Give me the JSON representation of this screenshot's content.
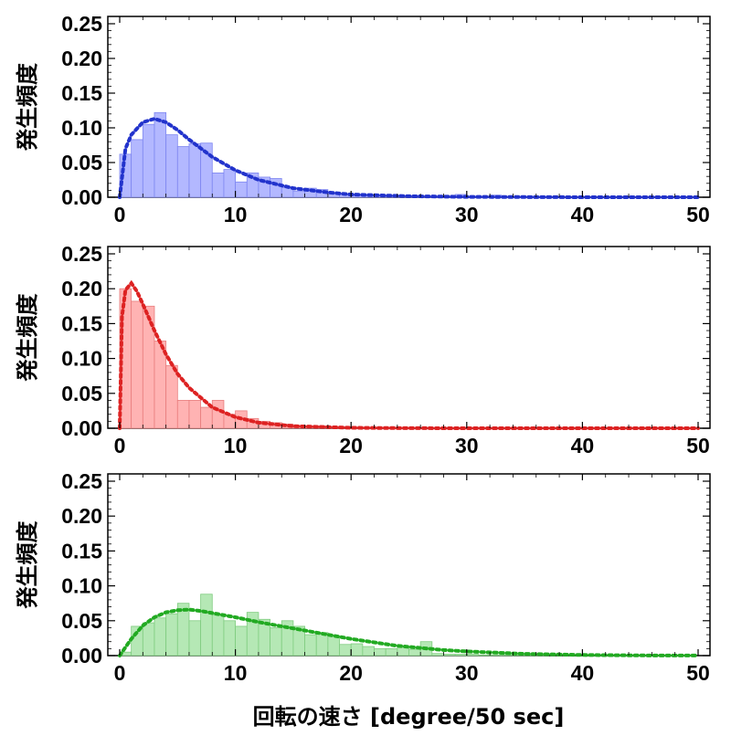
{
  "chart_data": [
    {
      "type": "bar",
      "ylabel": "発生頻度",
      "xlabel": "",
      "xlim": [
        0,
        50
      ],
      "ylim": [
        0,
        0.25
      ],
      "x_ticks": [
        "0",
        "10",
        "20",
        "30",
        "40",
        "50"
      ],
      "y_ticks": [
        "0.00",
        "0.05",
        "0.10",
        "0.15",
        "0.20",
        "0.25"
      ],
      "colors": {
        "bar_fill": "#b3b8ff",
        "bar_stroke": "#7e86f0",
        "fit": "#2233cc"
      },
      "bin_width": 1,
      "bin_starts": [
        0,
        1,
        2,
        3,
        4,
        5,
        6,
        7,
        8,
        9,
        10,
        11,
        12,
        13,
        14,
        15,
        16,
        17,
        18,
        19,
        20,
        21,
        22,
        23,
        24,
        25,
        26,
        27,
        28,
        29,
        30,
        31,
        32,
        33,
        34,
        35,
        36,
        37,
        38,
        39,
        40,
        41,
        42,
        43,
        44,
        45,
        46,
        47,
        48,
        49
      ],
      "values": [
        0.062,
        0.083,
        0.105,
        0.122,
        0.09,
        0.073,
        0.077,
        0.078,
        0.035,
        0.04,
        0.022,
        0.035,
        0.029,
        0.027,
        0.014,
        0.009,
        0.013,
        0.011,
        0.005,
        0.004,
        0.003,
        0.003,
        0.002,
        0.002,
        0.002,
        0.002,
        0.001,
        0.001,
        0.001,
        0.004,
        0.001,
        0.001,
        0.003,
        0.001,
        0.001,
        0.001,
        0.001,
        0,
        0,
        0,
        0,
        0,
        0,
        0,
        0,
        0,
        0,
        0,
        0,
        0
      ],
      "fit": {
        "style": "dotted",
        "x": [
          0,
          0.5,
          1,
          2,
          3,
          4,
          5,
          6,
          8,
          10,
          12,
          15,
          18,
          20,
          25,
          30,
          40,
          50
        ],
        "y": [
          0,
          0.07,
          0.09,
          0.108,
          0.113,
          0.108,
          0.097,
          0.083,
          0.058,
          0.039,
          0.025,
          0.013,
          0.007,
          0.004,
          0.0015,
          0.0005,
          0,
          0
        ]
      }
    },
    {
      "type": "bar",
      "ylabel": "発生頻度",
      "xlabel": "",
      "xlim": [
        0,
        50
      ],
      "ylim": [
        0,
        0.25
      ],
      "x_ticks": [
        "0",
        "10",
        "20",
        "30",
        "40",
        "50"
      ],
      "y_ticks": [
        "0.00",
        "0.05",
        "0.10",
        "0.15",
        "0.20",
        "0.25"
      ],
      "colors": {
        "bar_fill": "#ffb3b3",
        "bar_stroke": "#e87d7d",
        "fit": "#dd2222"
      },
      "bin_width": 1,
      "bin_starts": [
        0,
        1,
        2,
        3,
        4,
        5,
        6,
        7,
        8,
        9,
        10,
        11,
        12,
        13,
        14,
        15,
        16,
        17,
        18,
        19,
        20,
        21,
        22,
        23,
        24,
        25,
        26,
        27,
        28,
        29,
        30,
        31,
        32,
        33,
        34,
        35,
        36,
        37,
        38,
        39,
        40,
        41,
        42,
        43,
        44,
        45,
        46,
        47,
        48,
        49
      ],
      "values": [
        0.2,
        0.182,
        0.175,
        0.125,
        0.09,
        0.04,
        0.04,
        0.03,
        0.04,
        0.02,
        0.025,
        0.014,
        0.01,
        0.008,
        0.006,
        0.004,
        0.003,
        0.003,
        0.002,
        0.002,
        0.001,
        0.001,
        0.001,
        0.001,
        0.001,
        0,
        0,
        0,
        0,
        0,
        0,
        0,
        0,
        0,
        0,
        0,
        0,
        0,
        0,
        0,
        0,
        0,
        0,
        0,
        0,
        0,
        0,
        0,
        0,
        0
      ],
      "fit": {
        "style": "dotted",
        "x": [
          0,
          0.2,
          0.5,
          1,
          1.5,
          2,
          3,
          4,
          5,
          6,
          8,
          10,
          12,
          15,
          20,
          25,
          30,
          40,
          50
        ],
        "y": [
          0,
          0.16,
          0.198,
          0.208,
          0.196,
          0.178,
          0.14,
          0.106,
          0.078,
          0.058,
          0.03,
          0.016,
          0.008,
          0.003,
          0.0006,
          0.0001,
          0,
          0,
          0
        ]
      }
    },
    {
      "type": "bar",
      "ylabel": "発生頻度",
      "xlabel": "回転の速さ [degree/50 sec]",
      "xlim": [
        0,
        50
      ],
      "ylim": [
        0,
        0.25
      ],
      "x_ticks": [
        "0",
        "10",
        "20",
        "30",
        "40",
        "50"
      ],
      "y_ticks": [
        "0.00",
        "0.05",
        "0.10",
        "0.15",
        "0.20",
        "0.25"
      ],
      "colors": {
        "bar_fill": "#b5e8b5",
        "bar_stroke": "#7fcc7f",
        "fit": "#22aa22"
      },
      "bin_width": 1,
      "bin_starts": [
        0,
        1,
        2,
        3,
        4,
        5,
        6,
        7,
        8,
        9,
        10,
        11,
        12,
        13,
        14,
        15,
        16,
        17,
        18,
        19,
        20,
        21,
        22,
        23,
        24,
        25,
        26,
        27,
        28,
        29,
        30,
        31,
        32,
        33,
        34,
        35,
        36,
        37,
        38,
        39,
        40,
        41,
        42,
        43,
        44,
        45,
        46,
        47,
        48,
        49
      ],
      "values": [
        0.005,
        0.042,
        0.047,
        0.054,
        0.06,
        0.075,
        0.05,
        0.088,
        0.058,
        0.05,
        0.042,
        0.062,
        0.052,
        0.04,
        0.05,
        0.042,
        0.03,
        0.033,
        0.028,
        0.016,
        0.017,
        0.013,
        0.01,
        0.01,
        0.012,
        0.009,
        0.02,
        0.003,
        0.002,
        0.002,
        0.002,
        0.001,
        0.001,
        0.001,
        0.001,
        0.001,
        0.001,
        0,
        0,
        0,
        0,
        0,
        0,
        0,
        0,
        0,
        0,
        0,
        0,
        0
      ],
      "fit": {
        "style": "dotted",
        "x": [
          0,
          1,
          2,
          3,
          4,
          5,
          6,
          7,
          8,
          10,
          12,
          14,
          16,
          18,
          20,
          22,
          24,
          26,
          28,
          30,
          35,
          40,
          45,
          50
        ],
        "y": [
          0,
          0.024,
          0.043,
          0.055,
          0.062,
          0.065,
          0.066,
          0.064,
          0.061,
          0.055,
          0.048,
          0.042,
          0.036,
          0.03,
          0.024,
          0.019,
          0.014,
          0.011,
          0.008,
          0.006,
          0.0025,
          0.0009,
          0.0003,
          0.0001
        ]
      }
    }
  ]
}
